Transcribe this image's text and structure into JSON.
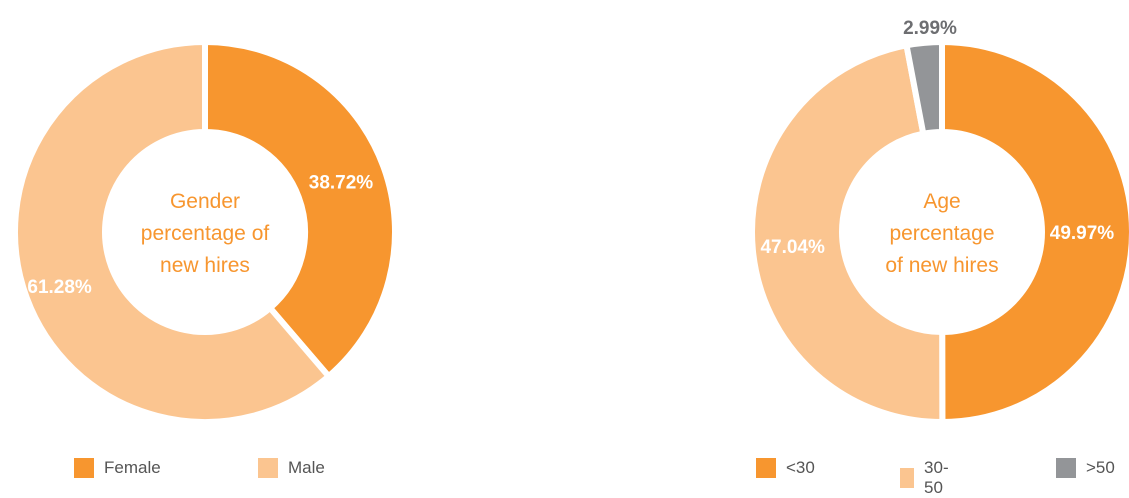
{
  "chart_data": [
    {
      "type": "pie",
      "title": "Gender percentage of new hires",
      "title_lines": [
        "Gender",
        "percentage of",
        "new hires"
      ],
      "categories": [
        "Female",
        "Male"
      ],
      "values": [
        38.72,
        61.28
      ],
      "value_labels": [
        "38.72%",
        "61.28%"
      ],
      "colors": [
        "#F7962F",
        "#FBC590"
      ],
      "legend_position": "bottom"
    },
    {
      "type": "pie",
      "title": "Age percentage of new hires",
      "title_lines": [
        "Age",
        "percentage",
        "of new hires"
      ],
      "categories": [
        "<30",
        "30-50",
        ">50"
      ],
      "values": [
        49.97,
        47.04,
        2.99
      ],
      "value_labels": [
        "49.97%",
        "47.04%",
        "2.99%"
      ],
      "colors": [
        "#F7962F",
        "#FBC590",
        "#939598"
      ],
      "legend_position": "bottom"
    }
  ],
  "style": {
    "title_color": "#F7962F",
    "inner_label_color": "#ffffff",
    "outer_label_color": "#6D6E71"
  }
}
